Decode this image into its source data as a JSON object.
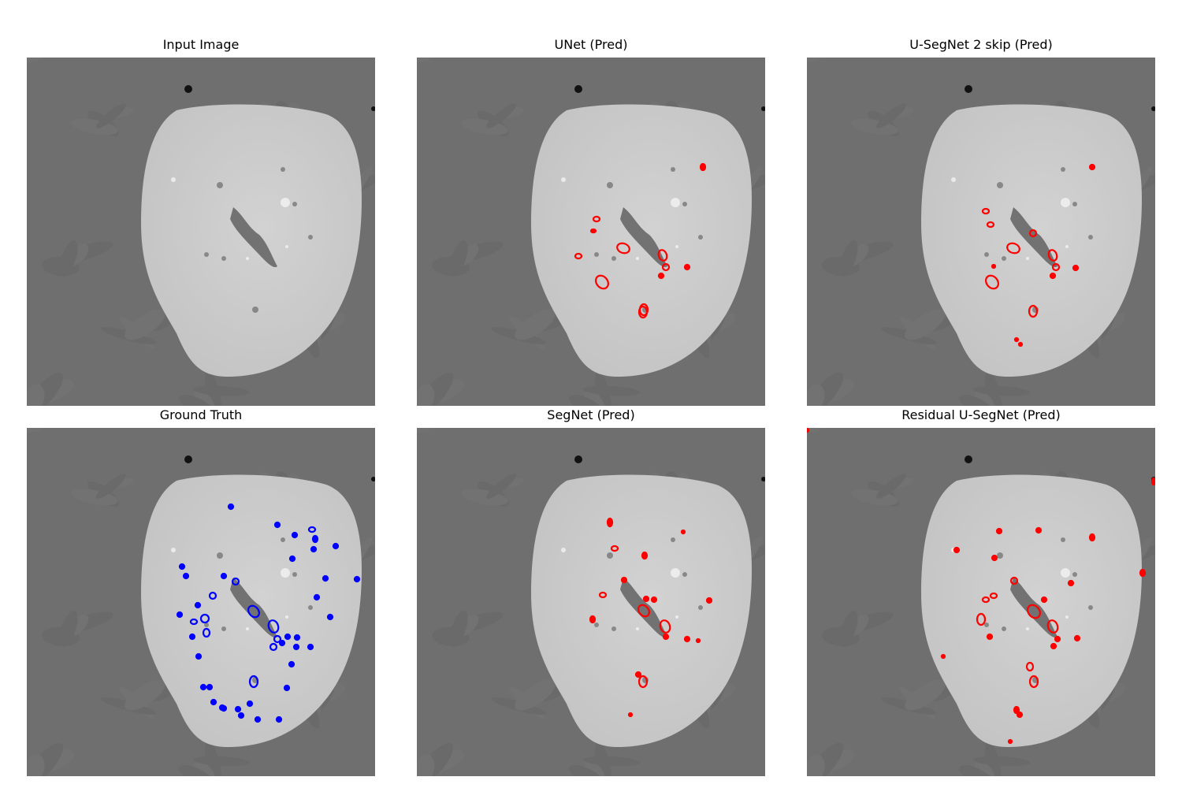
{
  "figure": {
    "panels": [
      {
        "title": "Input Image",
        "overlay": "none"
      },
      {
        "title": "UNet (Pred)",
        "overlay": "prediction"
      },
      {
        "title": "U-SegNet 2 skip (Pred)",
        "overlay": "prediction"
      },
      {
        "title": "Ground Truth",
        "overlay": "ground-truth"
      },
      {
        "title": "SegNet (Pred)",
        "overlay": "prediction"
      },
      {
        "title": "Residual U-SegNet (Pred)",
        "overlay": "prediction"
      }
    ],
    "colors": {
      "background_tissue": "#6f6f6f",
      "organ": "#c4c4c4",
      "ground_truth_contour": "#0000ff",
      "prediction_contour": "#ff0000"
    }
  }
}
